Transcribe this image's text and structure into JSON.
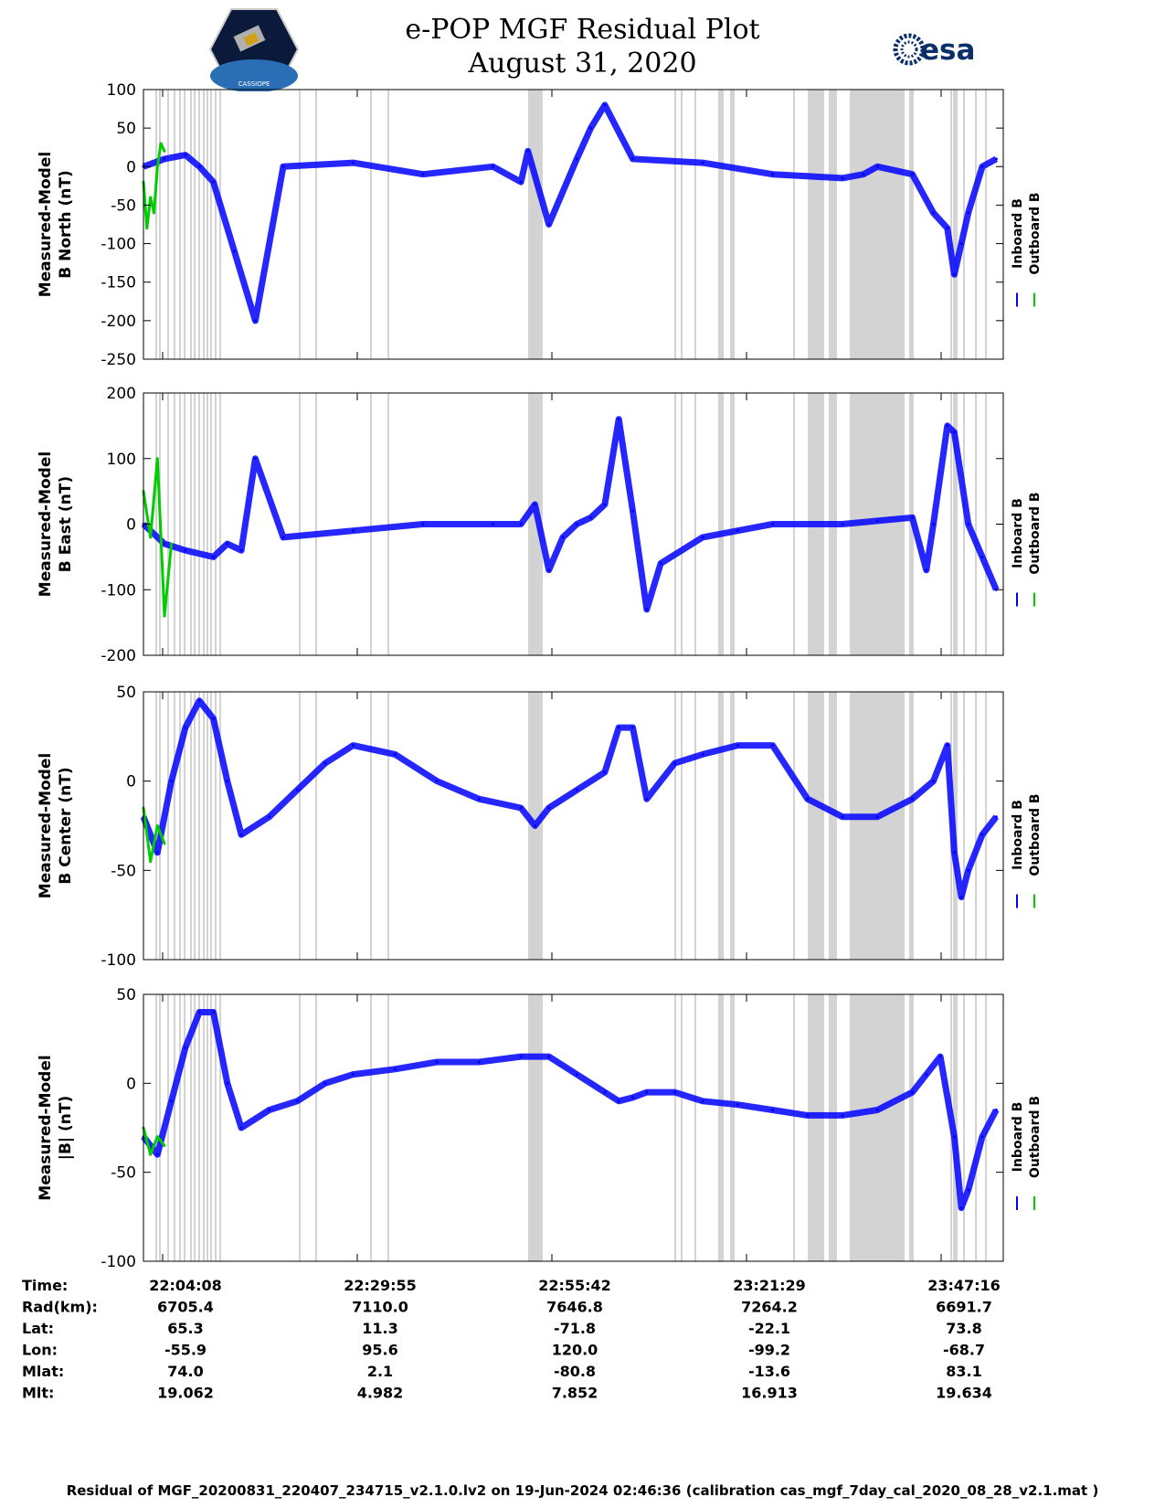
{
  "header": {
    "title": "e-POP MGF Residual Plot",
    "date": "August 31, 2020",
    "esa_logo_text": "esa",
    "mission_logo_text": "CASSIOPE"
  },
  "colors": {
    "inboard": "#0000ff",
    "outboard": "#00cc00",
    "shade": "#d3d3d3"
  },
  "legend": {
    "inboard": "Inboard B",
    "outboard": "Outboard B"
  },
  "time_axis": {
    "ticks": [
      "22:04:08",
      "22:29:55",
      "22:55:42",
      "23:21:29",
      "23:47:16"
    ]
  },
  "info_rows": [
    {
      "label": "Time:",
      "values": [
        "22:04:08",
        "22:29:55",
        "22:55:42",
        "23:21:29",
        "23:47:16"
      ]
    },
    {
      "label": "Rad(km):",
      "values": [
        "6705.4",
        "7110.0",
        "7646.8",
        "7264.2",
        "6691.7"
      ]
    },
    {
      "label": "Lat:",
      "values": [
        "65.3",
        "11.3",
        "-71.8",
        "-22.1",
        "73.8"
      ]
    },
    {
      "label": "Lon:",
      "values": [
        "-55.9",
        "95.6",
        "120.0",
        "-99.2",
        "-68.7"
      ]
    },
    {
      "label": "Mlat:",
      "values": [
        "74.0",
        "2.1",
        "-80.8",
        "-13.6",
        "83.1"
      ]
    },
    {
      "label": "Mlt:",
      "values": [
        "19.062",
        "4.982",
        "7.852",
        "16.913",
        "19.634"
      ]
    }
  ],
  "footer": "Residual of MGF_20200831_220407_234715_v2.1.0.lv2 on 19-Jun-2024 02:46:36 (calibration cas_mgf_7day_cal_2020_08_28_v2.1.mat )",
  "chart_data": [
    {
      "type": "line",
      "ylabel": [
        "Measured-Model",
        "B North (nT)"
      ],
      "ylim": [
        -250,
        100
      ],
      "yticks": [
        100,
        50,
        0,
        -50,
        -100,
        -150,
        -200,
        -250
      ],
      "x_unit": "minutes since 22:04:08",
      "series": [
        {
          "name": "Inboard B",
          "x": [
            0,
            3,
            6,
            8,
            10,
            13,
            16,
            20,
            30,
            40,
            50,
            54,
            55,
            58,
            62,
            64,
            66,
            70,
            80,
            90,
            100,
            103,
            105,
            110,
            113,
            115,
            116,
            117,
            118,
            120,
            122
          ],
          "y": [
            0,
            10,
            15,
            0,
            -20,
            -110,
            -200,
            0,
            5,
            -10,
            0,
            -20,
            20,
            -75,
            10,
            50,
            80,
            10,
            5,
            -10,
            -15,
            -10,
            0,
            -10,
            -60,
            -80,
            -140,
            -100,
            -60,
            0,
            10
          ]
        },
        {
          "name": "Outboard B",
          "x": [
            0,
            0.5,
            1,
            1.5,
            2,
            2.5,
            3
          ],
          "y": [
            -20,
            -80,
            -40,
            -60,
            0,
            30,
            20
          ]
        }
      ]
    },
    {
      "type": "line",
      "ylabel": [
        "Measured-Model",
        "B East (nT)"
      ],
      "ylim": [
        -200,
        200
      ],
      "yticks": [
        200,
        100,
        0,
        -100,
        -200
      ],
      "x_unit": "minutes since 22:04:08",
      "series": [
        {
          "name": "Inboard B",
          "x": [
            0,
            3,
            6,
            10,
            12,
            14,
            16,
            20,
            30,
            40,
            50,
            54,
            56,
            58,
            60,
            62,
            64,
            66,
            68,
            70,
            72,
            74,
            80,
            85,
            90,
            100,
            105,
            110,
            112,
            113,
            115,
            116,
            118,
            120,
            122
          ],
          "y": [
            0,
            -30,
            -40,
            -50,
            -30,
            -40,
            100,
            -20,
            -10,
            0,
            0,
            0,
            30,
            -70,
            -20,
            0,
            10,
            30,
            160,
            20,
            -130,
            -60,
            -20,
            -10,
            0,
            0,
            5,
            10,
            -70,
            0,
            150,
            140,
            0,
            -50,
            -100
          ]
        },
        {
          "name": "Outboard B",
          "x": [
            0,
            1,
            2,
            3,
            4
          ],
          "y": [
            50,
            -20,
            100,
            -140,
            -30
          ]
        }
      ]
    },
    {
      "type": "line",
      "ylabel": [
        "Measured-Model",
        "B Center (nT)"
      ],
      "ylim": [
        -100,
        50
      ],
      "yticks": [
        50,
        0,
        -50,
        -100
      ],
      "x_unit": "minutes since 22:04:08",
      "series": [
        {
          "name": "Inboard B",
          "x": [
            0,
            2,
            4,
            6,
            8,
            10,
            12,
            14,
            18,
            22,
            26,
            30,
            36,
            42,
            48,
            54,
            56,
            58,
            62,
            66,
            68,
            70,
            72,
            76,
            80,
            85,
            90,
            95,
            100,
            105,
            110,
            113,
            115,
            116,
            117,
            118,
            120,
            122
          ],
          "y": [
            -20,
            -40,
            0,
            30,
            45,
            35,
            0,
            -30,
            -20,
            -5,
            10,
            20,
            15,
            0,
            -10,
            -15,
            -25,
            -15,
            -5,
            5,
            30,
            30,
            -10,
            10,
            15,
            20,
            20,
            -10,
            -20,
            -20,
            -10,
            0,
            20,
            -40,
            -65,
            -50,
            -30,
            -20
          ]
        },
        {
          "name": "Outboard B",
          "x": [
            0,
            1,
            2,
            3
          ],
          "y": [
            -15,
            -45,
            -25,
            -35
          ]
        }
      ]
    },
    {
      "type": "line",
      "ylabel": [
        "Measured-Model",
        "|B| (nT)"
      ],
      "ylim": [
        -100,
        50
      ],
      "yticks": [
        50,
        0,
        -50,
        -100
      ],
      "x_unit": "minutes since 22:04:08",
      "series": [
        {
          "name": "Inboard B",
          "x": [
            0,
            2,
            4,
            6,
            8,
            10,
            12,
            14,
            18,
            22,
            26,
            30,
            36,
            42,
            48,
            54,
            58,
            62,
            66,
            68,
            70,
            72,
            76,
            80,
            85,
            90,
            95,
            100,
            105,
            110,
            112,
            114,
            116,
            117,
            118,
            120,
            122
          ],
          "y": [
            -30,
            -40,
            -10,
            20,
            40,
            40,
            0,
            -25,
            -15,
            -10,
            0,
            5,
            8,
            12,
            12,
            15,
            15,
            5,
            -5,
            -10,
            -8,
            -5,
            -5,
            -10,
            -12,
            -15,
            -18,
            -18,
            -15,
            -5,
            5,
            15,
            -30,
            -70,
            -60,
            -30,
            -15
          ]
        },
        {
          "name": "Outboard B",
          "x": [
            0,
            1,
            2,
            3
          ],
          "y": [
            -25,
            -40,
            -30,
            -35
          ]
        }
      ]
    }
  ]
}
